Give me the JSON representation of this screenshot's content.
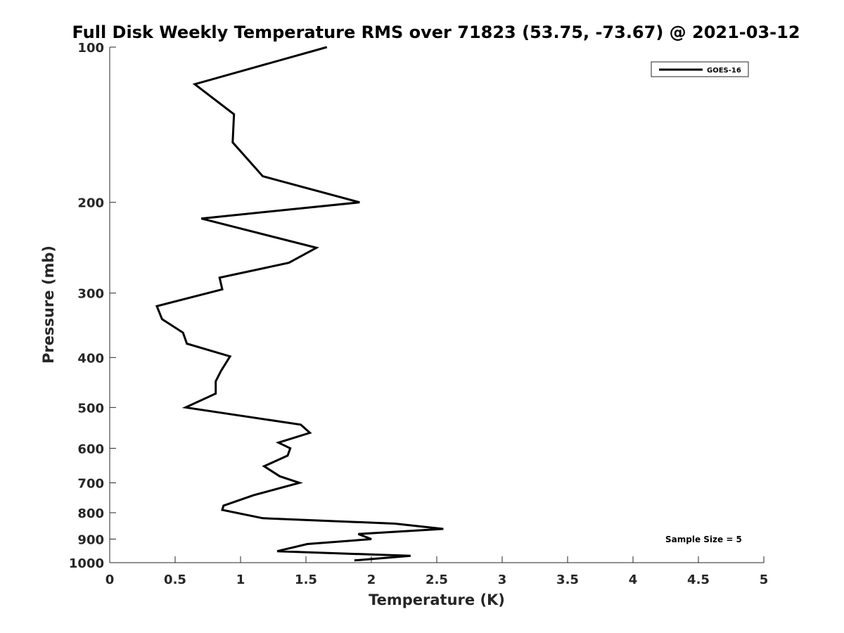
{
  "chart_data": {
    "type": "line",
    "title": "Full Disk Weekly Temperature RMS over 71823 (53.75, -73.67) @ 2021-03-12",
    "xlabel": "Temperature (K)",
    "ylabel": "Pressure (mb)",
    "xlim": [
      0,
      5
    ],
    "ylim": [
      100,
      1000
    ],
    "y_scale": "log",
    "y_reversed": true,
    "grid": false,
    "legend_position": "top-right",
    "x_ticks": [
      "0",
      "0.5",
      "1",
      "1.5",
      "2",
      "2.5",
      "3",
      "3.5",
      "4",
      "4.5",
      "5"
    ],
    "y_ticks": [
      "100",
      "200",
      "300",
      "400",
      "500",
      "600",
      "700",
      "800",
      "900",
      "1000"
    ],
    "series": [
      {
        "name": "GOES-16",
        "color": "#000000",
        "x": [
          1.66,
          0.65,
          0.95,
          0.94,
          1.17,
          1.91,
          0.7,
          1.58,
          1.37,
          0.84,
          0.86,
          0.36,
          0.4,
          0.56,
          0.59,
          0.92,
          0.85,
          0.81,
          0.81,
          0.58,
          1.46,
          1.53,
          1.29,
          1.38,
          1.36,
          1.18,
          1.3,
          1.45,
          1.1,
          0.87,
          0.86,
          1.17,
          2.18,
          2.55,
          1.9,
          2.0,
          1.51,
          1.28,
          2.3,
          1.87
        ],
        "y": [
          100,
          118,
          135,
          153,
          178,
          200,
          215,
          245,
          262,
          280,
          295,
          318,
          337,
          358,
          376,
          398,
          425,
          445,
          470,
          500,
          540,
          560,
          585,
          600,
          620,
          650,
          680,
          700,
          740,
          775,
          790,
          820,
          840,
          860,
          880,
          900,
          920,
          950,
          970,
          990
        ]
      }
    ],
    "annotations": [
      "Sample Size = 5"
    ]
  }
}
